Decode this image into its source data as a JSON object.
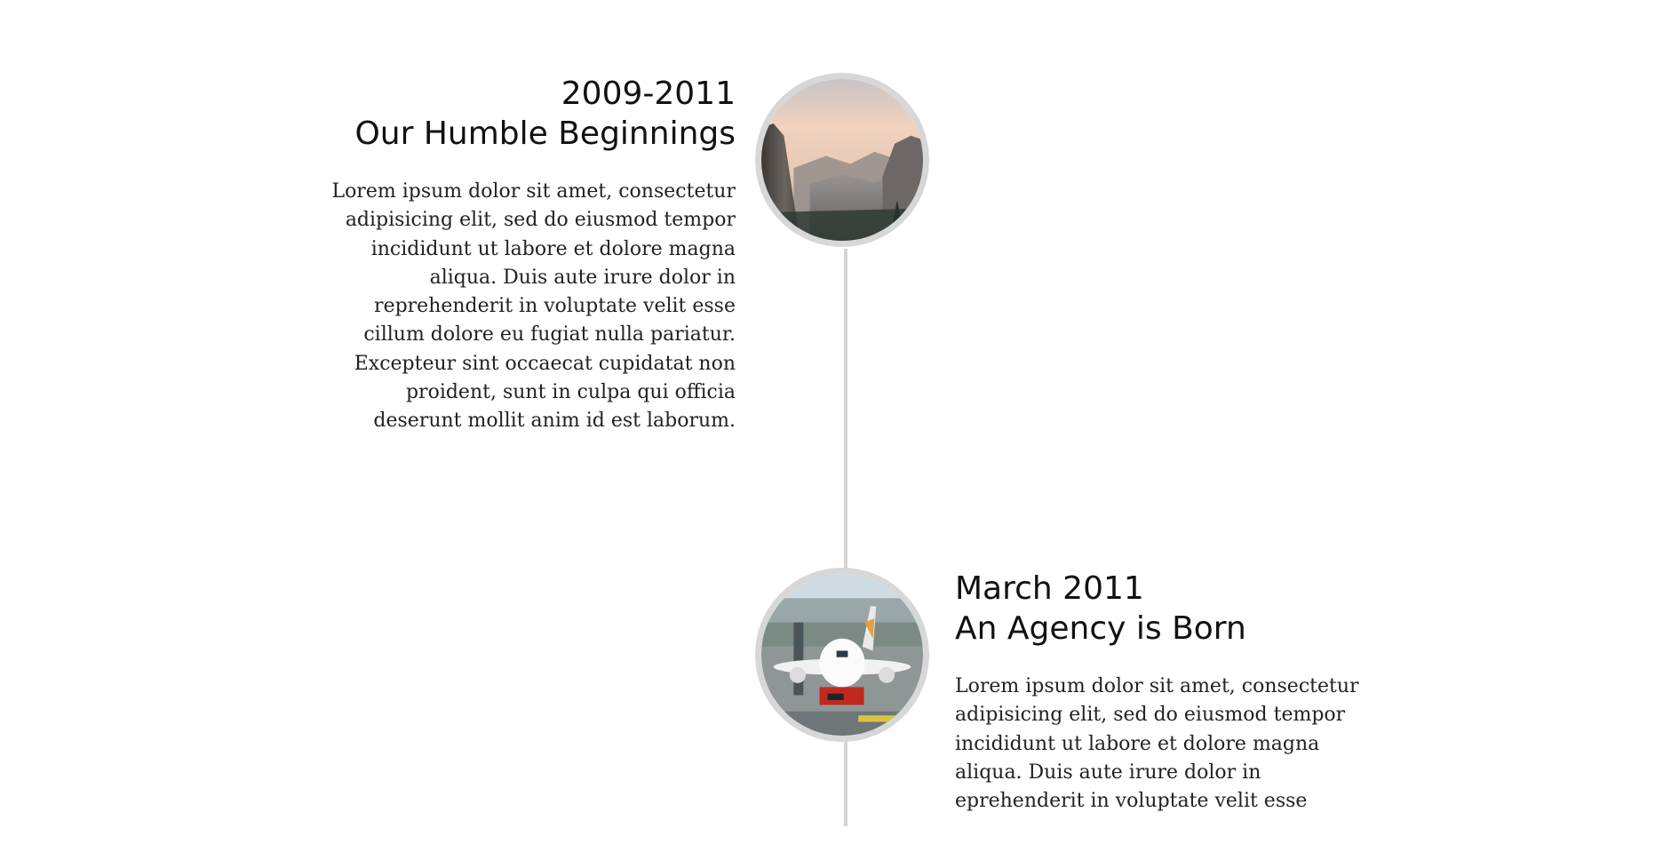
{
  "timeline": {
    "entries": [
      {
        "date": "2009-2011",
        "title": "Our Humble Beginnings",
        "body": "Lorem ipsum dolor sit amet, consectetur adipisicing elit, sed do eiusmod tempor incididunt ut labore et dolore magna aliqua. Duis aute irure dolor in reprehenderit in voluptate velit esse cillum dolore eu fugiat nulla pariatur. Excepteur sint occaecat cupidatat non proident, sunt in culpa qui officia deserunt mollit anim id est laborum.",
        "image": "mountain-valley-photo"
      },
      {
        "date": "March 2011",
        "title": "An Agency is Born",
        "body": "Lorem ipsum dolor sit amet, consectetur adipisicing elit, sed do eiusmod tempor incididunt ut labore et dolore magna aliqua. Duis aute irure dolor in eprehenderit in voluptate velit esse",
        "image": "airplane-at-airport-photo"
      }
    ]
  },
  "colors": {
    "line": "#d4d4d4",
    "node_border": "#d7d7d7",
    "text": "#111111"
  }
}
